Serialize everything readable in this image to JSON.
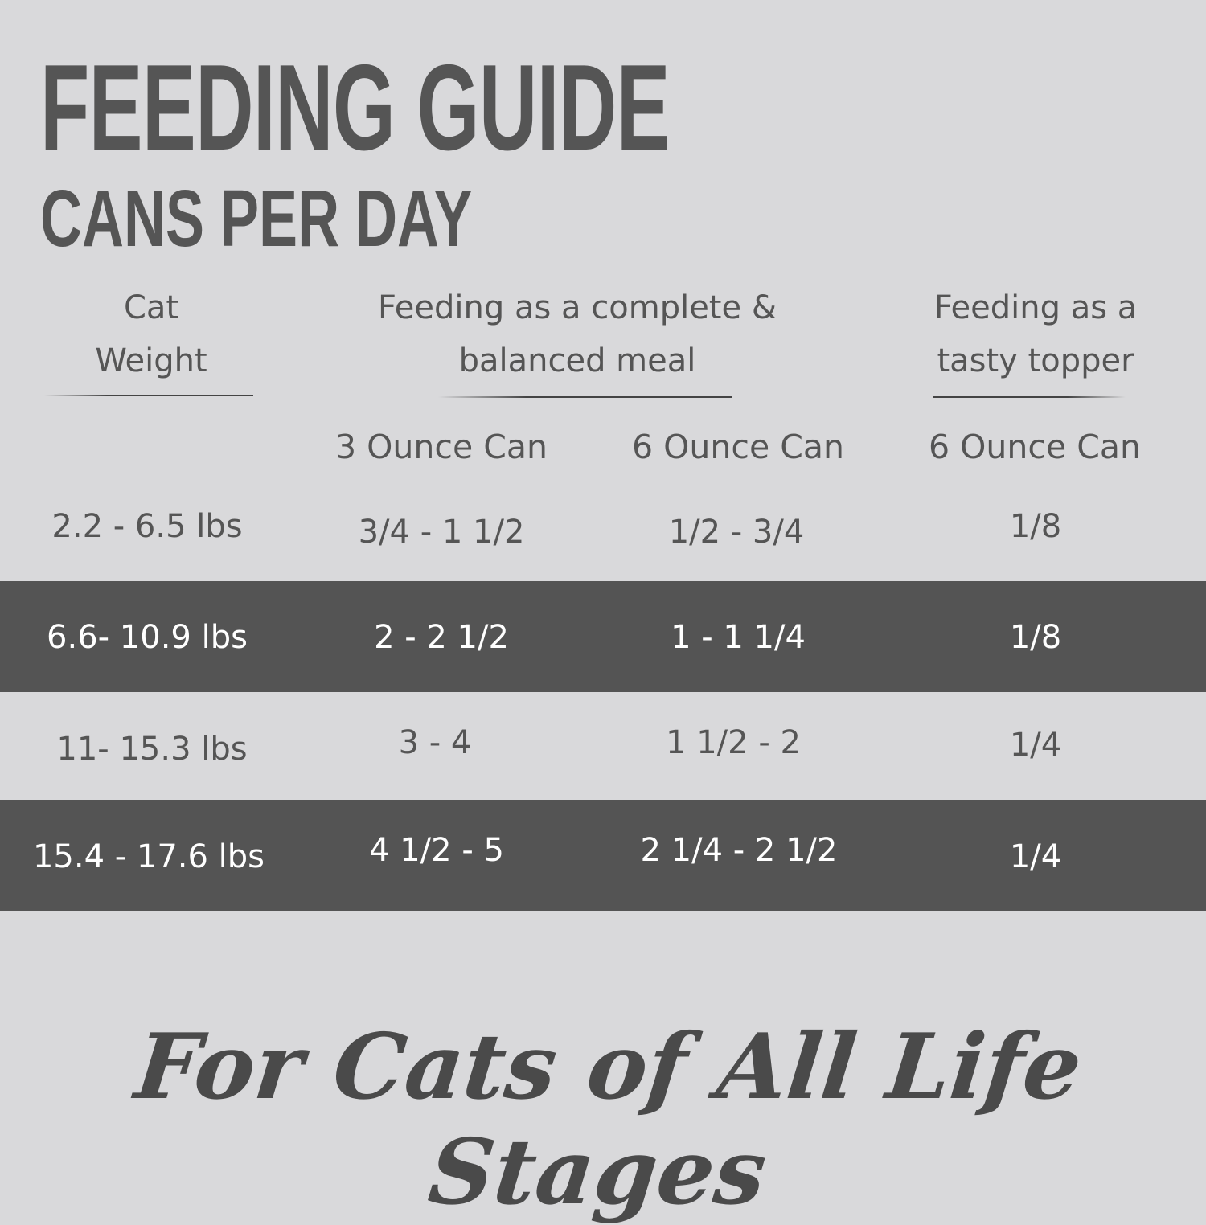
{
  "title": "FEEDING GUIDE",
  "subtitle": "CANS PER DAY",
  "headers": {
    "weight": [
      "Cat",
      "Weight"
    ],
    "complete": [
      "Feeding as a complete &",
      "balanced meal"
    ],
    "topper": [
      "Feeding as a",
      "tasty topper"
    ]
  },
  "subheaders": [
    "3 Ounce Can",
    "6 Ounce Can",
    "6 Ounce Can"
  ],
  "rows": [
    {
      "weight": "2.2 - 6.5 lbs",
      "c3": "3/4 - 1 1/2",
      "c6": "1/2 - 3/4",
      "topper": "1/8",
      "highlight": false
    },
    {
      "weight": "6.6- 10.9 lbs",
      "c3": "2 - 2 1/2",
      "c6": "1 - 1 1/4",
      "topper": "1/8",
      "highlight": true
    },
    {
      "weight": "11- 15.3 lbs",
      "c3": "3 - 4",
      "c6": "1 1/2 - 2",
      "topper": "1/4",
      "highlight": false
    },
    {
      "weight": "15.4 - 17.6 lbs",
      "c3": "4 1/2 - 5",
      "c6": "2 1/4 - 2 1/2",
      "topper": "1/4",
      "highlight": true
    }
  ],
  "footer": "For Cats of All Life Stages",
  "colors": {
    "background": "#d9d9db",
    "dark_row": "#545454",
    "text": "#555555"
  }
}
